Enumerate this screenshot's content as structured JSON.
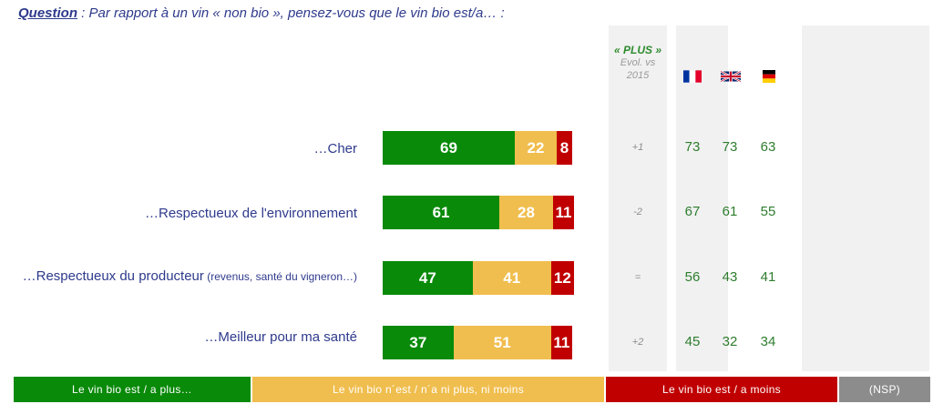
{
  "question": {
    "label": "Question",
    "text": " : Par rapport à un vin « non bio », pensez-vous que le vin bio est/a… :"
  },
  "plus_header": {
    "title": "« PLUS »",
    "sub1": "Evol. vs",
    "sub2": "2015"
  },
  "flags": [
    {
      "name": "france-flag-icon"
    },
    {
      "name": "uk-flag-icon"
    },
    {
      "name": "germany-flag-icon"
    }
  ],
  "colors": {
    "green": "#098a09",
    "yellow": "#f0be4e",
    "red": "#c00000",
    "nsp": "#8c8c8c"
  },
  "chart_data": {
    "type": "bar",
    "orientation": "horizontal-stacked",
    "categories": [
      "…Cher",
      "…Respectueux de l'environnement",
      "…Respectueux du producteur (revenus, santé du vigneron…)",
      "…Meilleur pour ma santé"
    ],
    "series": [
      {
        "name": "Le vin bio est / a plus…",
        "values": [
          69,
          61,
          47,
          37
        ]
      },
      {
        "name": "Le vin bio n'est / n'a ni plus, ni moins",
        "values": [
          22,
          28,
          41,
          51
        ]
      },
      {
        "name": "Le vin bio est / a moins",
        "values": [
          8,
          11,
          12,
          11
        ]
      }
    ],
    "legend": [
      "Le vin bio est / a plus…",
      "Le vin bio n´est / n´a ni plus, ni moins",
      "Le vin bio est / a moins",
      "(NSP)"
    ],
    "evolution_vs_2015": [
      "+1",
      "-2",
      "=",
      "+2"
    ],
    "country_plus": {
      "france": [
        73,
        67,
        56,
        45
      ],
      "uk": [
        73,
        61,
        43,
        32
      ],
      "germany": [
        63,
        55,
        41,
        34
      ]
    }
  },
  "rows": [
    {
      "label_pre": "…Cher",
      "label_emph": "",
      "label_small": ""
    },
    {
      "label_pre": "…Respectueux de l'environnement",
      "label_emph": "",
      "label_small": ""
    },
    {
      "label_pre": "…Respectueux du ",
      "label_emph": "producteur",
      "label_small": " (revenus, santé du vigneron…)"
    },
    {
      "label_pre": "…Meilleur pour ma santé",
      "label_emph": "",
      "label_small": ""
    }
  ],
  "legend_labels": {
    "plus": "Le vin bio est / a plus…",
    "neither": "Le vin bio n´est / n´a ni plus, ni moins",
    "moins": "Le vin bio est / a moins",
    "nsp": "(NSP)"
  }
}
